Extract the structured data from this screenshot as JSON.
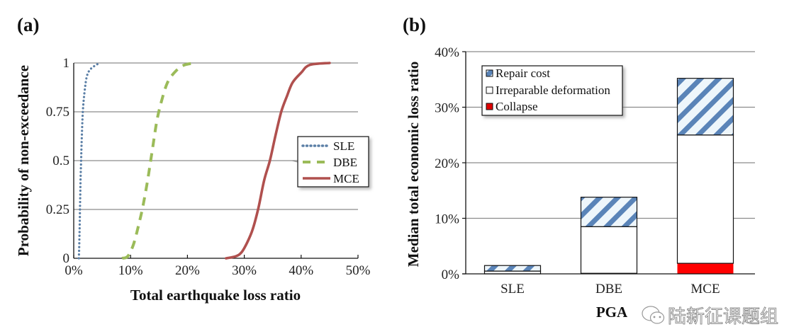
{
  "chart_data": [
    {
      "panel": "(a)",
      "type": "line",
      "title": "",
      "xlabel": "Total earthquake loss ratio",
      "ylabel": "Probability of non-exceedance",
      "xlim": [
        0,
        50
      ],
      "ylim": [
        0,
        1
      ],
      "x_ticks": [
        "0%",
        "10%",
        "20%",
        "30%",
        "40%",
        "50%"
      ],
      "y_ticks": [
        "0",
        "0.25",
        "0.5",
        "0.75",
        "1"
      ],
      "grid": "horizontal",
      "legend_position": "center-right",
      "series": [
        {
          "name": "SLE",
          "style": "dotted",
          "color": "#5b7fa6",
          "points": [
            [
              0.9,
              0
            ],
            [
              1.0,
              0.1
            ],
            [
              1.1,
              0.25
            ],
            [
              1.2,
              0.4
            ],
            [
              1.3,
              0.5
            ],
            [
              1.4,
              0.6
            ],
            [
              1.6,
              0.75
            ],
            [
              1.9,
              0.85
            ],
            [
              2.3,
              0.93
            ],
            [
              3.0,
              0.97
            ],
            [
              4.5,
              1.0
            ]
          ]
        },
        {
          "name": "DBE",
          "style": "dashed",
          "color": "#9bbb59",
          "points": [
            [
              8.5,
              0
            ],
            [
              9.5,
              0.01
            ],
            [
              10.5,
              0.07
            ],
            [
              11.5,
              0.18
            ],
            [
              12.2,
              0.27
            ],
            [
              13.0,
              0.4
            ],
            [
              13.8,
              0.55
            ],
            [
              14.6,
              0.7
            ],
            [
              15.4,
              0.8
            ],
            [
              16.5,
              0.9
            ],
            [
              18.0,
              0.96
            ],
            [
              19.5,
              0.99
            ],
            [
              21.5,
              1.0
            ]
          ]
        },
        {
          "name": "MCE",
          "style": "solid",
          "color": "#c0504d",
          "points": [
            [
              26.8,
              0
            ],
            [
              28.5,
              0.01
            ],
            [
              29.5,
              0.03
            ],
            [
              30.5,
              0.08
            ],
            [
              31.5,
              0.15
            ],
            [
              32.5,
              0.26
            ],
            [
              33.5,
              0.4
            ],
            [
              34.5,
              0.5
            ],
            [
              35.5,
              0.63
            ],
            [
              36.5,
              0.75
            ],
            [
              37.5,
              0.83
            ],
            [
              38.5,
              0.9
            ],
            [
              40.0,
              0.95
            ],
            [
              41.5,
              0.99
            ],
            [
              45.0,
              1.0
            ]
          ]
        }
      ]
    },
    {
      "panel": "(b)",
      "type": "bar",
      "stacked": true,
      "title": "",
      "xlabel": "PGA",
      "ylabel": "Median total economic loss ratio",
      "categories": [
        "SLE",
        "DBE",
        "MCE"
      ],
      "ylim": [
        0,
        40
      ],
      "y_ticks": [
        "0%",
        "10%",
        "20%",
        "30%",
        "40%"
      ],
      "grid": "horizontal",
      "legend_position": "top-left",
      "series": [
        {
          "name": "Collapse",
          "pattern": "solid",
          "color": "#ff0000",
          "values": [
            0.0,
            0.1,
            1.9
          ]
        },
        {
          "name": "Irreparable deformation",
          "pattern": "solid",
          "color": "#ffffff",
          "values": [
            0.5,
            8.4,
            23.1
          ]
        },
        {
          "name": "Repair cost",
          "pattern": "diagonal-stripes",
          "color": "#4f81bd",
          "values": [
            1.0,
            5.3,
            10.2
          ]
        }
      ]
    }
  ],
  "watermark": {
    "icon": "wechat-icon",
    "text": "陆新征课题组"
  }
}
